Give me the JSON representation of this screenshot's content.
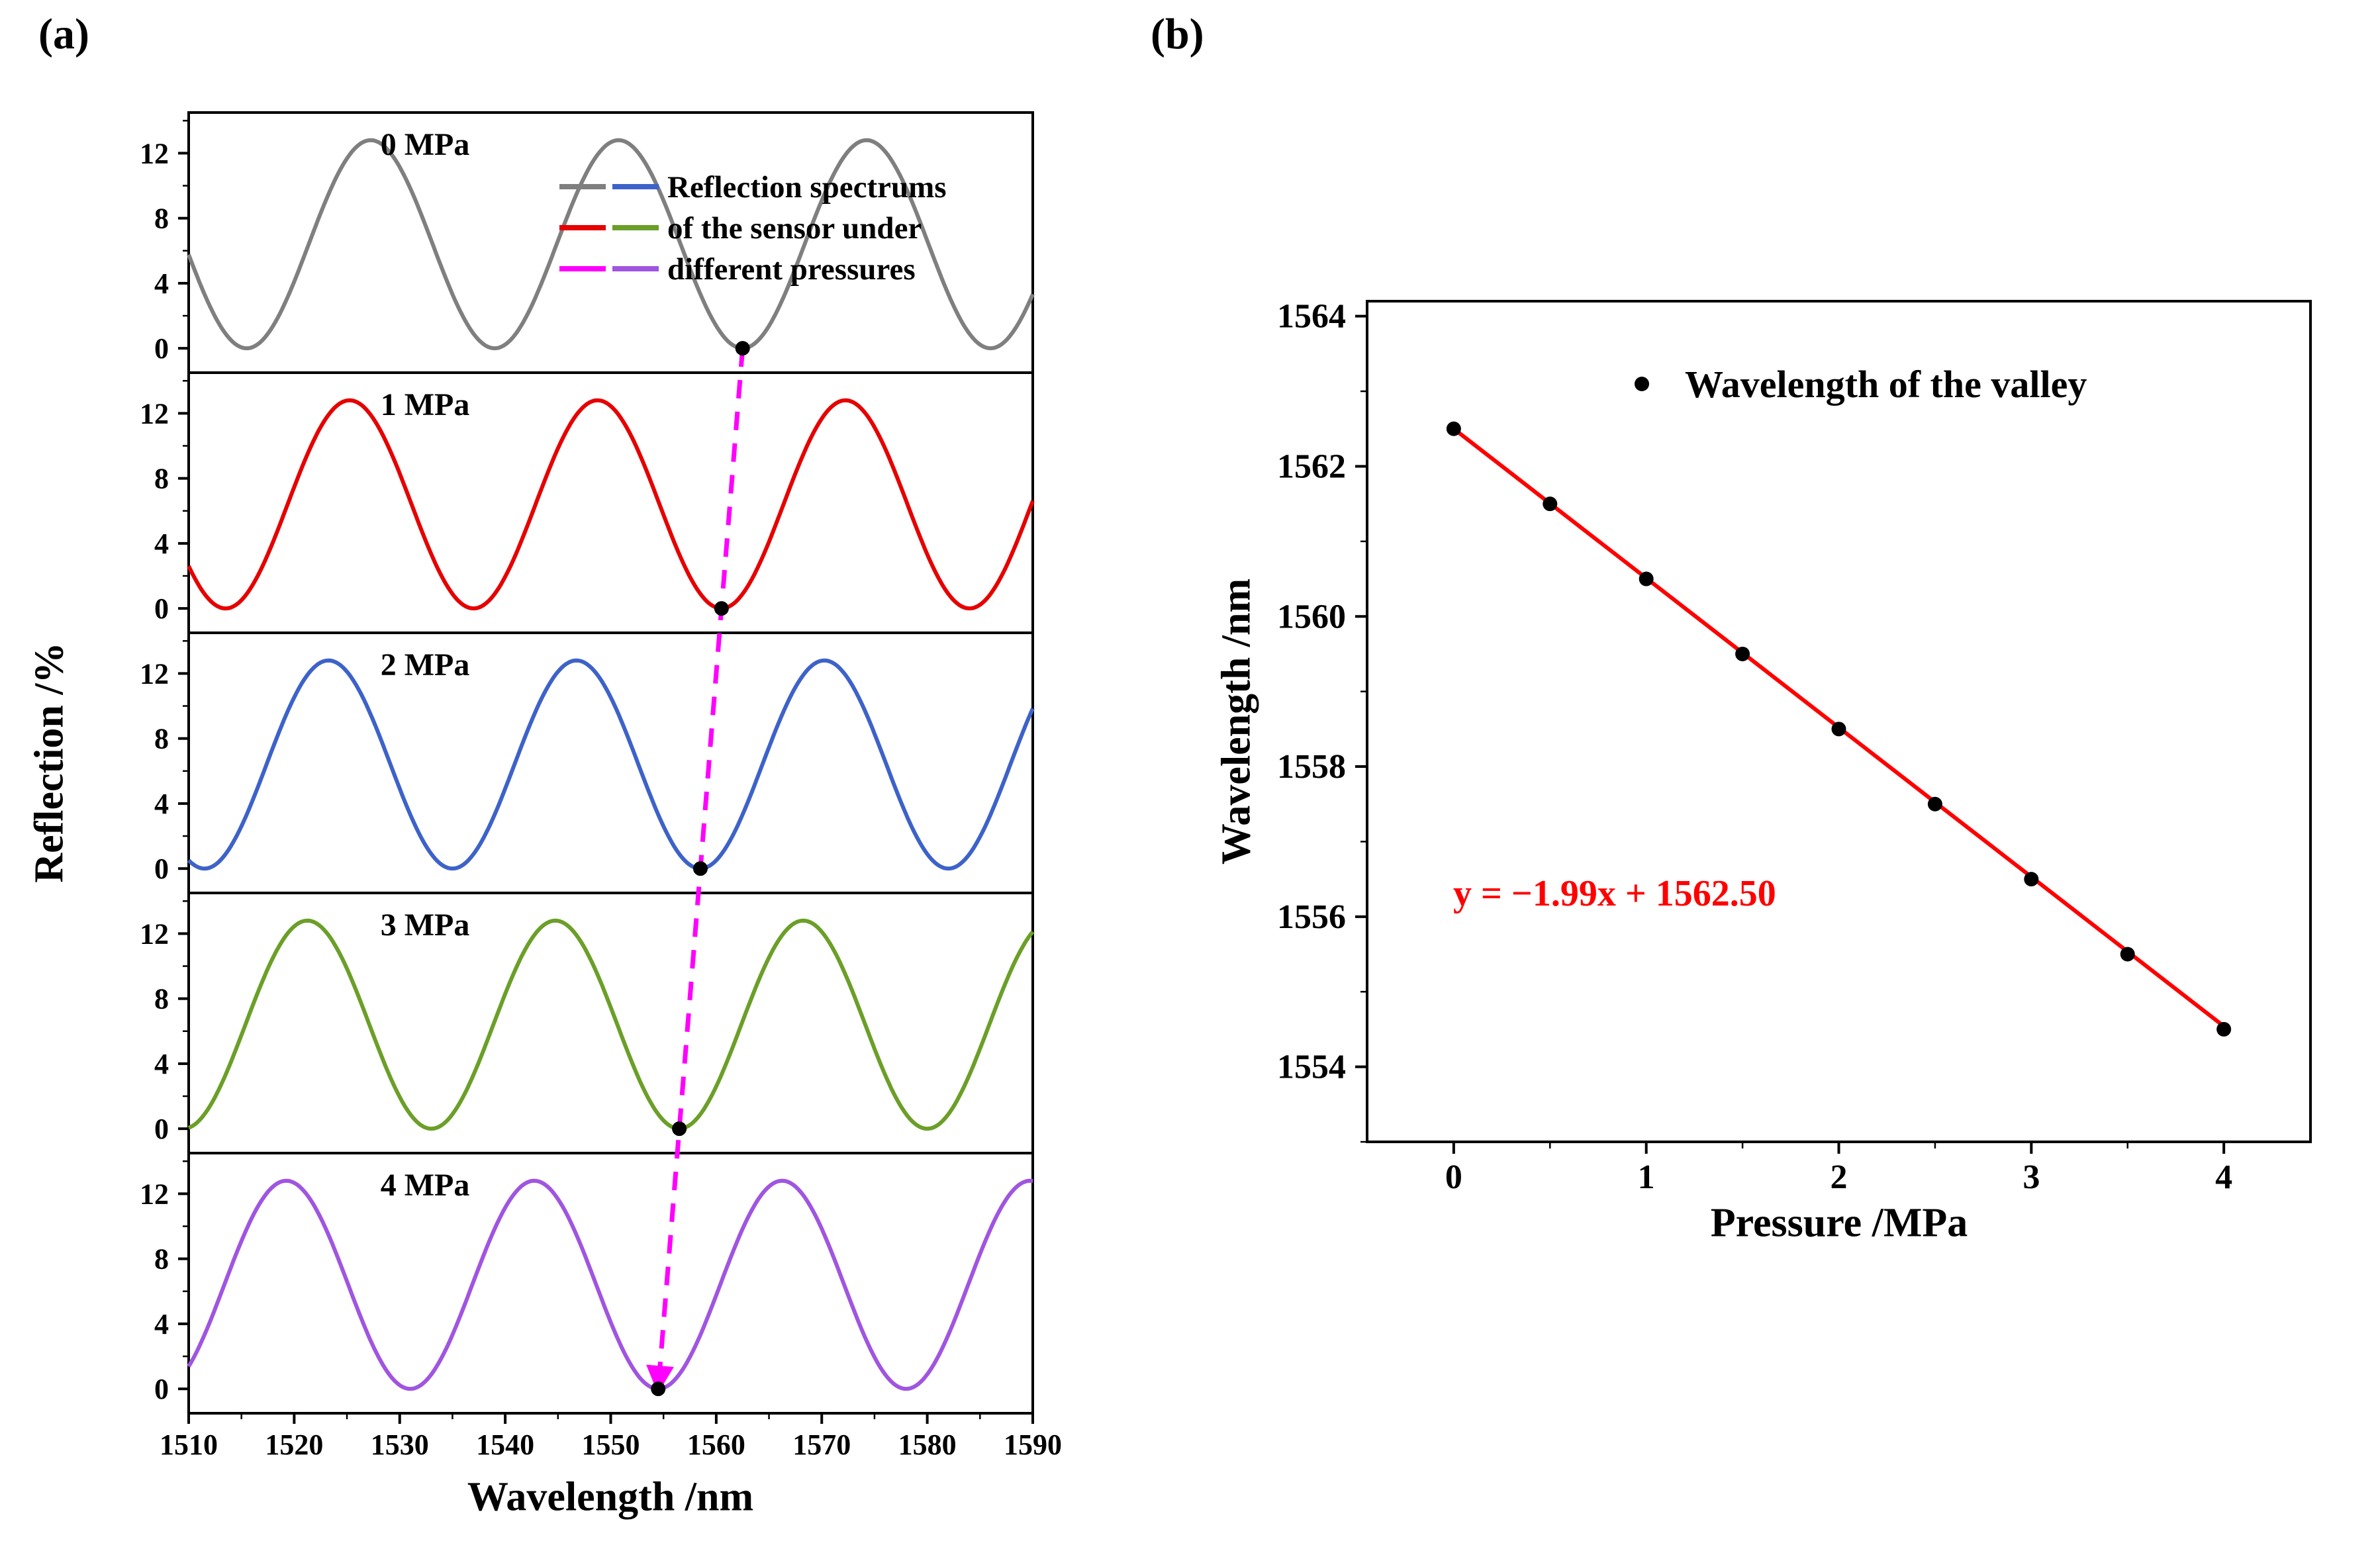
{
  "figure": {
    "panel_a_label": "(a)",
    "panel_b_label": "(b)",
    "background": "#ffffff"
  },
  "chart_data": [
    {
      "type": "line",
      "panel": "a",
      "xlabel": "Wavelength /nm",
      "ylabel": "Reflection /%",
      "xlim": [
        1510,
        1590
      ],
      "xticks_major": [
        1510,
        1520,
        1530,
        1540,
        1550,
        1560,
        1570,
        1580,
        1590
      ],
      "xticks_minor_step": 5,
      "subplot_ylim": [
        -1.5,
        14.5
      ],
      "yticks_major": [
        0,
        4,
        8,
        12
      ],
      "yticks_minor": [
        2,
        6,
        10,
        14
      ],
      "waveform": {
        "model": "reflection = (max/2)*(1 - cos(2*pi*(wavelength - valley)/period))",
        "max_percent": 12.8,
        "period_nm": 23.5
      },
      "subplots": [
        {
          "pressure_label": "0 MPa",
          "color": "#7f7f7f",
          "valley_nm": 1562.5,
          "valley_reflection": 0
        },
        {
          "pressure_label": "1 MPa",
          "color": "#e60000",
          "valley_nm": 1560.5,
          "valley_reflection": 0
        },
        {
          "pressure_label": "2 MPa",
          "color": "#3d62c9",
          "valley_nm": 1558.5,
          "valley_reflection": 0
        },
        {
          "pressure_label": "3 MPa",
          "color": "#6b9f28",
          "valley_nm": 1556.5,
          "valley_reflection": 0
        },
        {
          "pressure_label": "4 MPa",
          "color": "#a055e0",
          "valley_nm": 1554.5,
          "valley_reflection": 0
        }
      ],
      "valley_marker_color": "#000000",
      "valley_trace_arrow": {
        "color": "#ff00ff",
        "style": "dashed"
      },
      "legend": {
        "lines": [
          "Reflection spectrums",
          "of the sensor under",
          "different pressures"
        ],
        "marker_colors": [
          [
            "#7f7f7f",
            "#3d62c9"
          ],
          [
            "#e60000",
            "#6b9f28"
          ],
          [
            "#ff00ff",
            "#a055e0"
          ]
        ]
      }
    },
    {
      "type": "scatter",
      "panel": "b",
      "xlabel": "Pressure /MPa",
      "ylabel": "Wavelength /nm",
      "xlim": [
        -0.45,
        4.45
      ],
      "ylim": [
        1553.0,
        1564.2
      ],
      "xticks_major": [
        0,
        1,
        2,
        3,
        4
      ],
      "xticks_minor": [
        0.5,
        1.5,
        2.5,
        3.5
      ],
      "yticks_major": [
        1554,
        1556,
        1558,
        1560,
        1562,
        1564
      ],
      "yticks_minor": [
        1553,
        1555,
        1557,
        1559,
        1561,
        1563
      ],
      "points": {
        "pressure_mpa": [
          0,
          0.5,
          1,
          1.5,
          2,
          2.5,
          3,
          3.5,
          4
        ],
        "wavelength_nm": [
          1562.5,
          1561.5,
          1560.5,
          1559.5,
          1558.5,
          1557.5,
          1556.5,
          1555.5,
          1554.5
        ],
        "marker_color": "#000000"
      },
      "fit": {
        "slope": -1.99,
        "intercept": 1562.5,
        "equation_text": "y = −1.99x + 1562.50",
        "color": "#ff0000",
        "x_range": [
          0,
          4
        ]
      },
      "legend": {
        "label": "Wavelength of the valley",
        "marker_color": "#000000"
      }
    }
  ]
}
